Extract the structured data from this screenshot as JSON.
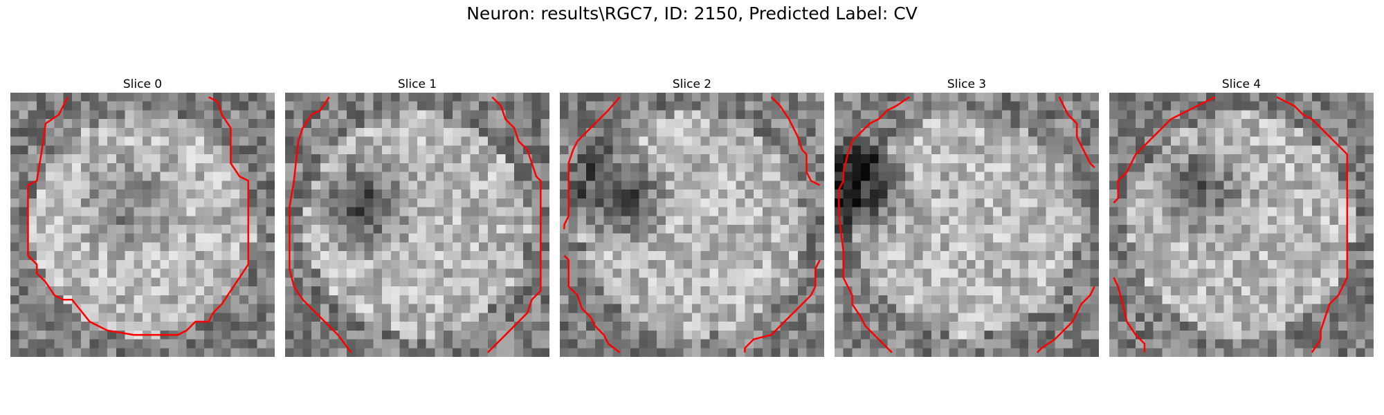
{
  "figure": {
    "title": "Neuron: results\\RGC7, ID: 2150, Predicted Label: CV",
    "colormap": "gray",
    "contour_color": "#ff0000"
  },
  "slices": [
    {
      "title": "Slice 0",
      "seed": 11,
      "dark_center": [
        0.45,
        0.42
      ],
      "dark_strength": 0.25
    },
    {
      "title": "Slice 1",
      "seed": 23,
      "dark_center": [
        0.3,
        0.42
      ],
      "dark_strength": 0.45
    },
    {
      "title": "Slice 2",
      "seed": 37,
      "dark_center": [
        0.22,
        0.38
      ],
      "dark_strength": 0.55
    },
    {
      "title": "Slice 3",
      "seed": 41,
      "dark_center": [
        0.1,
        0.36
      ],
      "dark_strength": 0.6
    },
    {
      "title": "Slice 4",
      "seed": 53,
      "dark_center": [
        0.35,
        0.35
      ],
      "dark_strength": 0.35
    }
  ]
}
